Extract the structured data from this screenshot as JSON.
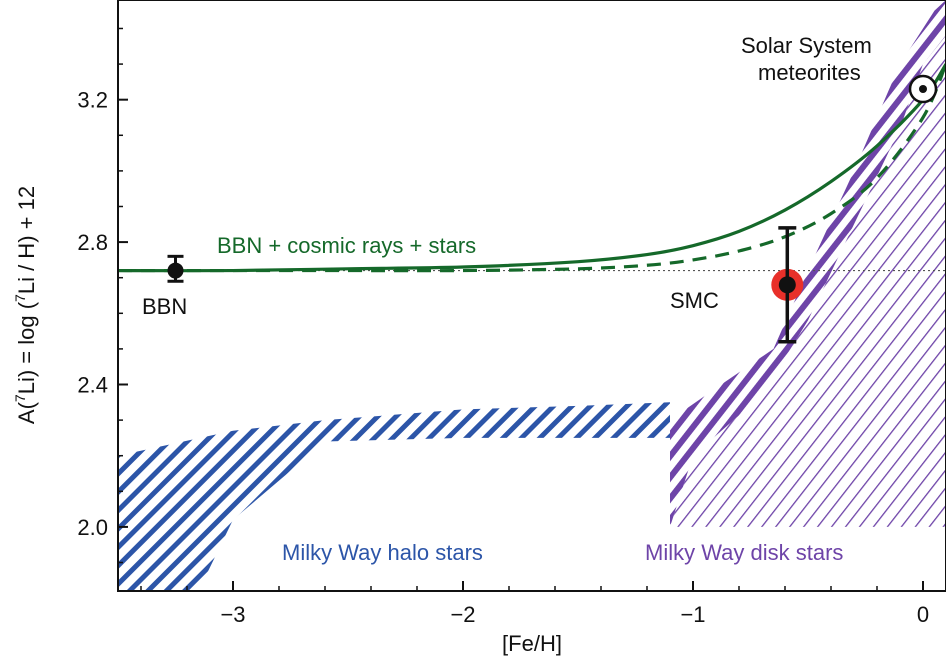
{
  "chart_data": {
    "type": "scatter",
    "xlabel": "[Fe/H]",
    "ylabel_parts": [
      "A(",
      "7",
      "Li) = log (",
      "7",
      "Li / H) + 12"
    ],
    "xlim": [
      -3.5,
      0.1
    ],
    "ylim": [
      1.82,
      3.48
    ],
    "x_ticks": [
      -3,
      -2,
      -1,
      0
    ],
    "x_tick_labels": [
      "−3",
      "−2",
      "−1",
      "0"
    ],
    "y_ticks": [
      2.0,
      2.4,
      2.8,
      3.2
    ],
    "y_tick_labels": [
      "2.0",
      "2.4",
      "2.8",
      "3.2"
    ],
    "grid": false,
    "reference_line": {
      "y": 2.72,
      "style": "dotted"
    },
    "series": [
      {
        "name": "BBN + cosmic rays + stars",
        "style": "solid",
        "color": "#15692a",
        "x": [
          -3.5,
          -3.0,
          -2.5,
          -2.0,
          -1.5,
          -1.2,
          -1.0,
          -0.8,
          -0.6,
          -0.4,
          -0.2,
          0.0,
          0.1
        ],
        "y": [
          2.72,
          2.72,
          2.725,
          2.73,
          2.745,
          2.765,
          2.79,
          2.83,
          2.89,
          2.97,
          3.07,
          3.2,
          3.3
        ]
      },
      {
        "name": "",
        "style": "dashed",
        "color": "#15692a",
        "x": [
          -3.5,
          -2.5,
          -2.0,
          -1.5,
          -1.2,
          -1.0,
          -0.8,
          -0.6,
          -0.4,
          -0.2,
          0.0,
          0.1
        ],
        "y": [
          2.72,
          2.72,
          2.72,
          2.725,
          2.735,
          2.75,
          2.775,
          2.815,
          2.88,
          2.98,
          3.15,
          3.3
        ]
      }
    ],
    "points": [
      {
        "label": "BBN",
        "x": -3.25,
        "y": 2.72,
        "yerr_low": 2.69,
        "yerr_high": 2.76,
        "color": "#111111"
      },
      {
        "label": "SMC",
        "x": -0.59,
        "y": 2.68,
        "yerr_low": 2.52,
        "yerr_high": 2.84,
        "color": "#e8302a"
      },
      {
        "label": "Solar System meteorites",
        "x": 0.0,
        "y": 3.23,
        "marker": "sun"
      }
    ],
    "regions": [
      {
        "label": "Milky Way halo stars",
        "color": "#2c55a8",
        "upper": {
          "x": [
            -3.5,
            -3.0,
            -2.6,
            -2.0,
            -1.5,
            -1.1
          ],
          "y": [
            2.2,
            2.27,
            2.3,
            2.33,
            2.34,
            2.35
          ]
        },
        "lower": {
          "x": [
            -3.5,
            -3.15,
            -3.0,
            -2.6,
            -2.0,
            -1.5,
            -1.1
          ],
          "y": [
            1.82,
            1.82,
            2.02,
            2.24,
            2.25,
            2.25,
            2.25
          ]
        }
      },
      {
        "label": "Milky Way disk stars",
        "color": "#6e44a8",
        "left": {
          "x": [
            -1.1,
            -1.0,
            -0.7,
            -0.5,
            -0.3,
            -0.1,
            0.0,
            0.1
          ],
          "y": [
            2.0,
            2.2,
            2.37,
            2.58,
            2.85,
            3.12,
            3.3,
            3.38
          ]
        },
        "right": {
          "x": [
            -1.1,
            -0.9,
            -0.65,
            -0.5,
            -0.3,
            -0.1,
            0.05,
            0.1
          ],
          "y": [
            2.3,
            2.39,
            2.5,
            2.72,
            3.0,
            3.3,
            3.45,
            3.48
          ]
        },
        "lower_boundary_y": 2.0
      }
    ],
    "annotations": [
      {
        "text": "BBN + cosmic rays + stars",
        "color": "#15692a"
      },
      {
        "text": "BBN",
        "color": "#111111"
      },
      {
        "text": "SMC",
        "color": "#111111"
      },
      {
        "text": "Solar System",
        "color": "#111111"
      },
      {
        "text": "meteorites",
        "color": "#111111"
      },
      {
        "text": "Milky Way halo stars",
        "color": "#2c55a8"
      },
      {
        "text": "Milky Way disk stars",
        "color": "#6e44a8"
      }
    ]
  }
}
